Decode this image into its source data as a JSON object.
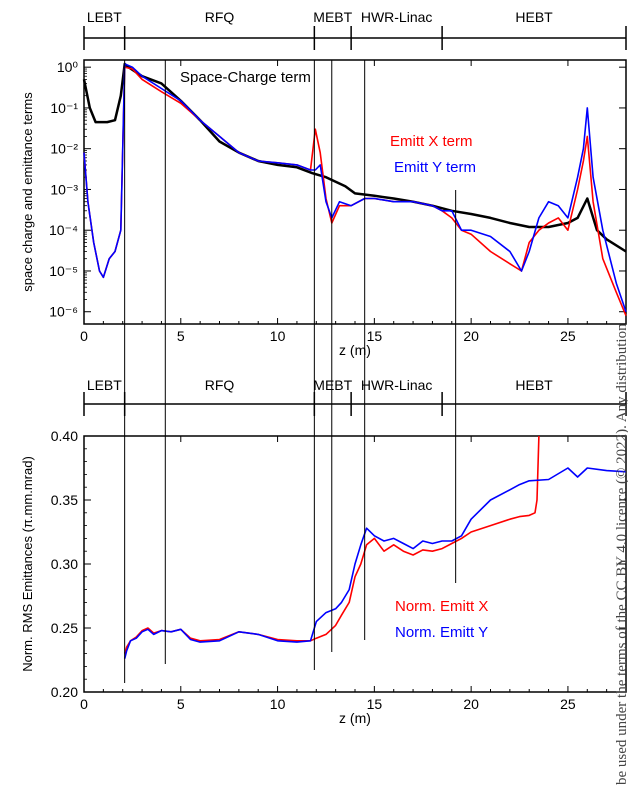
{
  "side_note": "be used under the terms of the CC BY 4.0 licence (© 2022). Any distribution",
  "chart_data": [
    {
      "type": "line",
      "xlabel": "z (m)",
      "ylabel": "space charge and emittance terms",
      "xlim": [
        0,
        28
      ],
      "yscale": "log",
      "ylim": [
        5e-07,
        1.5
      ],
      "x_ticks": [
        "0",
        "5",
        "10",
        "15",
        "20",
        "25"
      ],
      "y_ticks": [
        "10⁰",
        "10⁻¹",
        "10⁻²",
        "10⁻³",
        "10⁻⁴",
        "10⁻⁵",
        "10⁻⁶"
      ],
      "sections": [
        {
          "label": "LEBT",
          "start": 0,
          "end": 2.1
        },
        {
          "label": "RFQ",
          "start": 2.1,
          "end": 11.9
        },
        {
          "label": "MEBT",
          "start": 11.9,
          "end": 13.8
        },
        {
          "label": "HWR-Linac",
          "start": 13.8,
          "end": 18.5
        },
        {
          "label": "HEBT",
          "start": 18.5,
          "end": 28
        }
      ],
      "annotations": [
        "Space-Charge term"
      ],
      "legend": [
        "Emitt X term",
        "Emitt Y term"
      ],
      "series": [
        {
          "name": "Space-Charge term",
          "color": "#000000",
          "x": [
            0,
            0.3,
            0.6,
            1.2,
            1.6,
            1.9,
            2.1,
            2.3,
            3,
            4,
            5,
            6,
            7,
            8,
            9,
            10,
            11,
            11.8,
            12.5,
            13.5,
            14,
            15,
            16,
            17,
            18,
            19,
            20,
            21,
            22,
            23,
            24,
            25,
            25.5,
            26,
            26.5,
            27,
            28
          ],
          "y": [
            0.5,
            0.1,
            0.045,
            0.045,
            0.05,
            0.2,
            1.2,
            1.0,
            0.6,
            0.4,
            0.15,
            0.05,
            0.015,
            0.008,
            0.005,
            0.004,
            0.0035,
            0.0025,
            0.002,
            0.0012,
            0.0008,
            0.0007,
            0.0006,
            0.0005,
            0.0004,
            0.0003,
            0.00025,
            0.0002,
            0.00015,
            0.00012,
            0.00012,
            0.00015,
            0.0002,
            0.0006,
            0.0001,
            6e-05,
            3e-05
          ]
        },
        {
          "name": "Emitt X term",
          "color": "#ff0000",
          "x": [
            0,
            0.2,
            0.5,
            0.8,
            1.0,
            1.3,
            1.6,
            1.9,
            2.1,
            2.5,
            3,
            4,
            5,
            6,
            7,
            8,
            9,
            10,
            11,
            11.7,
            11.95,
            12.2,
            12.5,
            12.8,
            13.2,
            13.8,
            14.5,
            15,
            16,
            17,
            18,
            18.5,
            19,
            19.5,
            20,
            21,
            22,
            22.6,
            23,
            23.5,
            24,
            24.5,
            25,
            25.5,
            25.8,
            26.0,
            26.3,
            26.8,
            27.5,
            28
          ],
          "y": [
            0.008,
            0.0005,
            5e-05,
            1e-05,
            7e-06,
            2e-05,
            3e-05,
            0.0001,
            1.0,
            0.9,
            0.5,
            0.25,
            0.13,
            0.05,
            0.02,
            0.008,
            0.005,
            0.0045,
            0.004,
            0.003,
            0.03,
            0.008,
            0.0006,
            0.00015,
            0.0004,
            0.0004,
            0.0006,
            0.0006,
            0.0005,
            0.0005,
            0.0004,
            0.0003,
            0.0002,
            0.0001,
            8e-05,
            3e-05,
            1.5e-05,
            1e-05,
            5e-05,
            0.0001,
            0.00015,
            0.0002,
            0.0001,
            0.001,
            0.005,
            0.02,
            0.0005,
            2e-05,
            3e-06,
            8e-07
          ]
        },
        {
          "name": "Emitt Y term",
          "color": "#0000ff",
          "x": [
            0,
            0.2,
            0.5,
            0.8,
            1.0,
            1.3,
            1.6,
            1.9,
            2.1,
            2.5,
            3,
            4,
            5,
            6,
            7,
            8,
            9,
            10,
            11,
            11.7,
            11.95,
            12.2,
            12.5,
            12.8,
            13.2,
            13.8,
            14.5,
            15,
            16,
            17,
            18,
            18.5,
            19,
            19.5,
            20,
            21,
            22,
            22.6,
            23,
            23.5,
            24,
            24.5,
            25,
            25.5,
            25.8,
            26.0,
            26.3,
            26.8,
            27.5,
            28
          ],
          "y": [
            0.008,
            0.0005,
            5e-05,
            1e-05,
            7e-06,
            2e-05,
            3e-05,
            0.0001,
            1.2,
            1.0,
            0.6,
            0.3,
            0.15,
            0.05,
            0.02,
            0.008,
            0.005,
            0.0045,
            0.004,
            0.003,
            0.003,
            0.004,
            0.0005,
            0.0002,
            0.0005,
            0.0004,
            0.0006,
            0.0006,
            0.0005,
            0.0005,
            0.0004,
            0.0003,
            0.0003,
            0.0001,
            0.0001,
            7e-05,
            3e-05,
            1e-05,
            3e-05,
            0.0002,
            0.0005,
            0.0004,
            0.0002,
            0.002,
            0.01,
            0.1,
            0.002,
            0.0001,
            5e-06,
            1e-06
          ]
        }
      ]
    },
    {
      "type": "line",
      "xlabel": "z (m)",
      "ylabel": "Norm. RMS Emittances (π.mm.mrad)",
      "xlim": [
        0,
        28
      ],
      "ylim": [
        0.2,
        0.4
      ],
      "x_ticks": [
        "0",
        "5",
        "10",
        "15",
        "20",
        "25"
      ],
      "y_ticks": [
        "0.20",
        "0.25",
        "0.30",
        "0.35",
        "0.40"
      ],
      "sections": [
        {
          "label": "LEBT",
          "start": 0,
          "end": 2.1
        },
        {
          "label": "RFQ",
          "start": 2.1,
          "end": 11.9
        },
        {
          "label": "MEBT",
          "start": 11.9,
          "end": 13.8
        },
        {
          "label": "HWR-Linac",
          "start": 13.8,
          "end": 18.5
        },
        {
          "label": "HEBT",
          "start": 18.5,
          "end": 28
        }
      ],
      "legend": [
        "Norm. Emitt X",
        "Norm. Emitt Y"
      ],
      "series": [
        {
          "name": "Norm. Emitt X",
          "color": "#ff0000",
          "x": [
            2.1,
            2.2,
            2.4,
            2.7,
            3.0,
            3.3,
            3.6,
            4.0,
            4.5,
            5.0,
            5.5,
            6.0,
            7.0,
            8.0,
            9.0,
            10.0,
            11.0,
            11.7,
            12.0,
            12.5,
            13.0,
            13.3,
            13.7,
            14.0,
            14.3,
            14.6,
            15.0,
            15.5,
            16.0,
            16.5,
            17.0,
            17.5,
            18.0,
            18.5,
            19.0,
            19.5,
            20.0,
            21.0,
            22.0,
            22.5,
            23.0,
            23.3,
            23.4,
            23.5
          ],
          "y": [
            0.23,
            0.235,
            0.24,
            0.243,
            0.248,
            0.25,
            0.246,
            0.248,
            0.247,
            0.249,
            0.242,
            0.24,
            0.241,
            0.247,
            0.245,
            0.241,
            0.24,
            0.24,
            0.242,
            0.245,
            0.252,
            0.26,
            0.27,
            0.29,
            0.3,
            0.315,
            0.32,
            0.31,
            0.315,
            0.31,
            0.307,
            0.311,
            0.31,
            0.312,
            0.316,
            0.32,
            0.325,
            0.33,
            0.335,
            0.337,
            0.338,
            0.34,
            0.35,
            0.4
          ]
        },
        {
          "name": "Norm. Emitt Y",
          "color": "#0000ff",
          "x": [
            2.1,
            2.2,
            2.4,
            2.7,
            3.0,
            3.3,
            3.6,
            4.0,
            4.5,
            5.0,
            5.5,
            6.0,
            7.0,
            8.0,
            9.0,
            10.0,
            11.0,
            11.7,
            12.0,
            12.5,
            13.0,
            13.3,
            13.7,
            14.0,
            14.3,
            14.6,
            15.0,
            15.5,
            16.0,
            16.5,
            17.0,
            17.5,
            18.0,
            18.5,
            19.0,
            19.5,
            20.0,
            21.0,
            22.0,
            22.5,
            23.0,
            24.0,
            25.0,
            25.5,
            26.0,
            27.0,
            28.0
          ],
          "y": [
            0.226,
            0.232,
            0.24,
            0.242,
            0.247,
            0.249,
            0.245,
            0.248,
            0.247,
            0.249,
            0.241,
            0.239,
            0.24,
            0.247,
            0.245,
            0.24,
            0.239,
            0.24,
            0.255,
            0.262,
            0.265,
            0.27,
            0.28,
            0.3,
            0.315,
            0.328,
            0.322,
            0.318,
            0.32,
            0.316,
            0.312,
            0.318,
            0.316,
            0.318,
            0.318,
            0.322,
            0.335,
            0.35,
            0.358,
            0.362,
            0.365,
            0.366,
            0.375,
            0.368,
            0.375,
            0.373,
            0.372
          ]
        }
      ]
    }
  ]
}
